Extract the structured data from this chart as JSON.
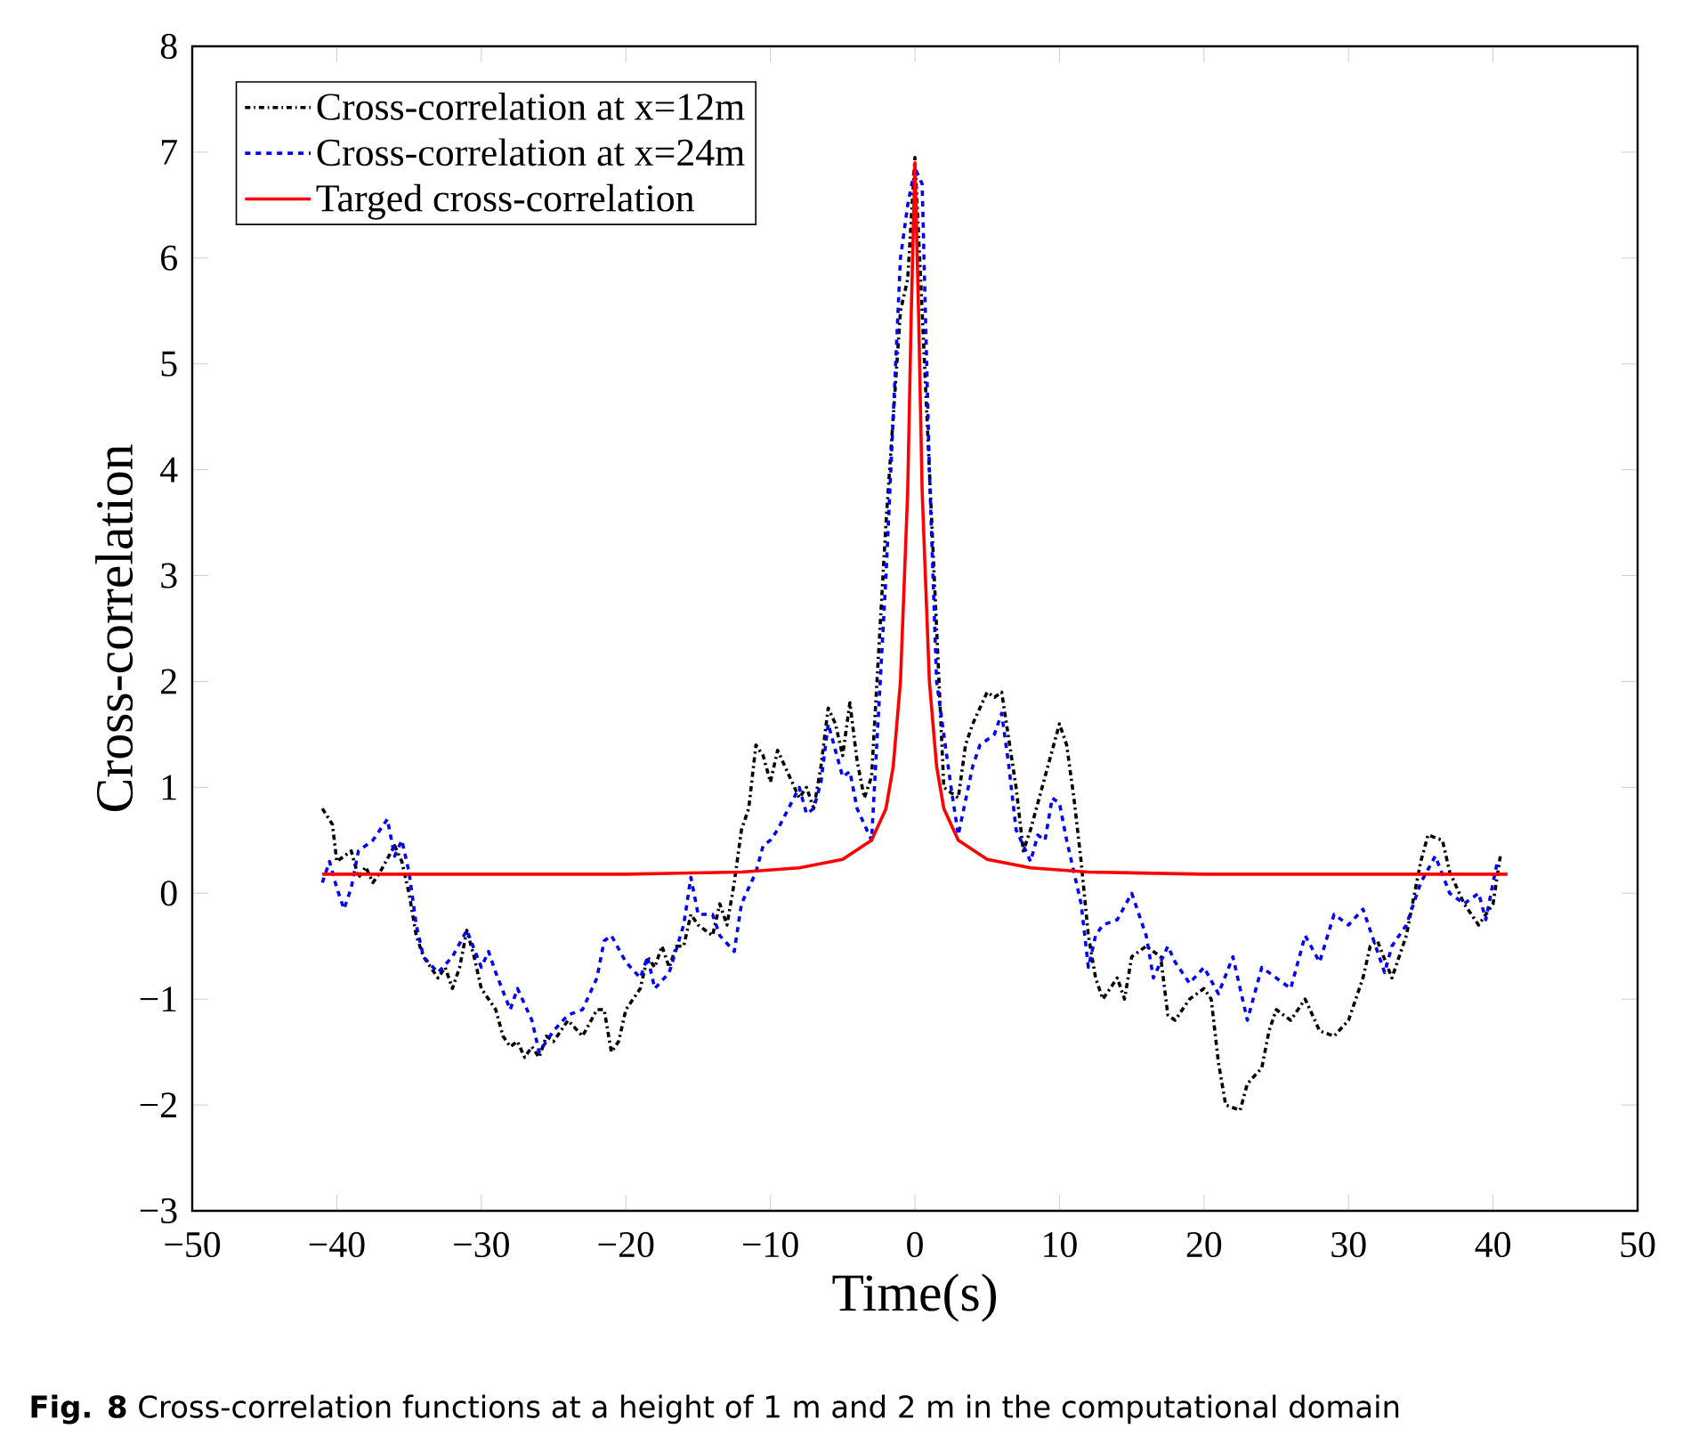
{
  "chart_data": {
    "type": "line",
    "xlabel": "Time(s)",
    "ylabel": "Cross-correlation",
    "xlim": [
      -50,
      50
    ],
    "xticks": [
      {
        "value": -50,
        "label": "−50"
      },
      {
        "value": -40,
        "label": "−40"
      },
      {
        "value": -30,
        "label": "−30"
      },
      {
        "value": -20,
        "label": "−20"
      },
      {
        "value": -10,
        "label": "−10"
      },
      0,
      10,
      20,
      30,
      40,
      50
    ],
    "ylim": [
      -3,
      8
    ],
    "yticks": [
      {
        "value": -3,
        "label": "−3"
      },
      {
        "value": -2,
        "label": "−2"
      },
      {
        "value": -1,
        "label": "−1"
      },
      0,
      1,
      2,
      3,
      4,
      5,
      6,
      7,
      8
    ],
    "grid": false,
    "legend": "top left",
    "annotations": [
      "**Fig. 8**  Cross-correlation functions at a height of 1 m and 2 m in the computational domain"
    ],
    "series": [
      {
        "name": "Cross-correlation at x=12m",
        "color": "#000000",
        "line_style": "dashdot",
        "x": [
          -41,
          -40.3,
          -40,
          -39,
          -38.5,
          -38,
          -37.5,
          -37,
          -36,
          -35.5,
          -35,
          -34.5,
          -34,
          -33,
          -32.5,
          -32,
          -31.5,
          -31,
          -30.5,
          -30,
          -29,
          -28.5,
          -28,
          -27.5,
          -27,
          -26.5,
          -26,
          -25.5,
          -25,
          -24,
          -23,
          -22,
          -21.5,
          -21,
          -20.5,
          -20,
          -19,
          -18.5,
          -18,
          -17.5,
          -17,
          -16.5,
          -16,
          -15.5,
          -15,
          -14,
          -13.5,
          -13,
          -12.5,
          -12,
          -11.5,
          -11,
          -10.5,
          -10,
          -9.5,
          -9,
          -8,
          -7.5,
          -7,
          -6.5,
          -6,
          -5.5,
          -5,
          -4.5,
          -4,
          -3.5,
          -3,
          -2,
          -1.5,
          -1,
          -0.5,
          0,
          0.5,
          1,
          1.5,
          2,
          3,
          3.5,
          4,
          5,
          5.5,
          6,
          7,
          7.5,
          8,
          9,
          10,
          10.5,
          11,
          11.5,
          12,
          12.5,
          13,
          14,
          14.5,
          15,
          16,
          17,
          17.5,
          18,
          19,
          20,
          20.5,
          21,
          21.5,
          22.5,
          23,
          24,
          24.5,
          25,
          26,
          27,
          28,
          29,
          30,
          31,
          31.5,
          32,
          33,
          34,
          35,
          35.5,
          36.5,
          37,
          38,
          38.5,
          39,
          40,
          40.5
        ],
        "values": [
          0.8,
          0.65,
          0.3,
          0.4,
          0.15,
          0.25,
          0.1,
          0.2,
          0.45,
          0.3,
          0.0,
          -0.4,
          -0.6,
          -0.8,
          -0.7,
          -0.9,
          -0.7,
          -0.35,
          -0.6,
          -0.9,
          -1.1,
          -1.35,
          -1.45,
          -1.4,
          -1.55,
          -1.45,
          -1.55,
          -1.35,
          -1.4,
          -1.2,
          -1.35,
          -1.1,
          -1.1,
          -1.5,
          -1.4,
          -1.1,
          -0.9,
          -0.6,
          -0.7,
          -0.5,
          -0.7,
          -0.5,
          -0.5,
          -0.2,
          -0.3,
          -0.4,
          -0.1,
          -0.3,
          0.1,
          0.6,
          0.8,
          1.4,
          1.3,
          1.05,
          1.35,
          1.2,
          0.9,
          1.0,
          0.8,
          1.2,
          1.75,
          1.6,
          1.3,
          1.8,
          1.25,
          0.9,
          1.1,
          3.5,
          4.5,
          5.5,
          5.8,
          6.95,
          5.5,
          4.0,
          2.5,
          1.0,
          0.9,
          1.4,
          1.6,
          1.9,
          1.85,
          1.9,
          1.0,
          0.4,
          0.6,
          1.1,
          1.6,
          1.4,
          0.9,
          0.3,
          -0.4,
          -0.8,
          -1.0,
          -0.8,
          -1.0,
          -0.6,
          -0.5,
          -0.6,
          -1.15,
          -1.2,
          -1.0,
          -0.9,
          -1.0,
          -1.6,
          -2.0,
          -2.05,
          -1.8,
          -1.65,
          -1.3,
          -1.1,
          -1.2,
          -1.0,
          -1.3,
          -1.35,
          -1.2,
          -0.8,
          -0.5,
          -0.45,
          -0.8,
          -0.4,
          0.3,
          0.55,
          0.5,
          0.2,
          -0.1,
          -0.2,
          -0.3,
          -0.1,
          0.35
        ]
      },
      {
        "name": "Cross-correlation at x=24m",
        "color": "#0000ff",
        "line_style": "dashed",
        "x": [
          -41,
          -40.5,
          -40,
          -39.5,
          -39,
          -38.5,
          -37.5,
          -36.5,
          -36,
          -35.5,
          -35,
          -34.5,
          -34,
          -33,
          -32,
          -31,
          -30,
          -29.5,
          -29,
          -28,
          -27.5,
          -27,
          -26.5,
          -26,
          -25,
          -24,
          -23,
          -22,
          -21.5,
          -21,
          -20,
          -19,
          -18.5,
          -18,
          -17,
          -16,
          -15.5,
          -15,
          -14,
          -13.5,
          -12.5,
          -12,
          -11,
          -10.5,
          -10,
          -9.5,
          -8,
          -7.5,
          -7,
          -6.5,
          -6,
          -5,
          -4.5,
          -4,
          -3,
          -2,
          -1.5,
          -1,
          -0.5,
          0,
          0.5,
          1,
          1.5,
          2.5,
          3,
          4,
          4.5,
          5.5,
          6,
          6.5,
          7,
          8,
          8.5,
          9,
          9.5,
          10,
          10.5,
          11.5,
          12,
          12.5,
          13,
          14,
          15,
          16,
          16.5,
          17.5,
          18,
          19,
          20,
          21,
          22,
          23,
          24,
          25,
          26,
          27,
          28,
          29,
          30,
          31,
          32,
          32.5,
          33,
          34,
          35,
          36,
          37,
          38,
          39,
          39.5,
          40,
          40.3
        ],
        "values": [
          0.1,
          0.3,
          0.05,
          -0.15,
          0.05,
          0.4,
          0.5,
          0.7,
          0.35,
          0.5,
          0.2,
          -0.3,
          -0.6,
          -0.75,
          -0.6,
          -0.35,
          -0.7,
          -0.55,
          -0.75,
          -1.1,
          -0.9,
          -1.05,
          -1.2,
          -1.5,
          -1.3,
          -1.15,
          -1.1,
          -0.8,
          -0.45,
          -0.4,
          -0.65,
          -0.8,
          -0.6,
          -0.9,
          -0.75,
          -0.3,
          0.15,
          -0.2,
          -0.2,
          -0.4,
          -0.55,
          -0.1,
          0.2,
          0.45,
          0.5,
          0.6,
          1.0,
          0.75,
          0.8,
          1.05,
          1.6,
          1.1,
          1.15,
          0.8,
          0.5,
          3.0,
          4.5,
          6.0,
          6.5,
          6.85,
          6.7,
          4.0,
          2.0,
          1.0,
          0.55,
          1.2,
          1.4,
          1.5,
          1.7,
          1.2,
          0.6,
          0.3,
          0.55,
          0.5,
          0.9,
          0.85,
          0.5,
          -0.1,
          -0.7,
          -0.4,
          -0.3,
          -0.25,
          0.0,
          -0.4,
          -0.8,
          -0.5,
          -0.65,
          -0.85,
          -0.7,
          -0.95,
          -0.6,
          -1.2,
          -0.7,
          -0.8,
          -0.9,
          -0.4,
          -0.65,
          -0.2,
          -0.3,
          -0.15,
          -0.55,
          -0.75,
          -0.5,
          -0.3,
          0.1,
          0.35,
          0.0,
          -0.1,
          0.0,
          -0.25,
          0.1,
          0.3
        ]
      },
      {
        "name": "Targed cross-correlation",
        "color": "#ff0000",
        "line_style": "solid",
        "x": [
          -41,
          -20,
          -12,
          -8,
          -5,
          -3,
          -2,
          -1.5,
          -1,
          -0.5,
          -0.25,
          0,
          0.25,
          0.5,
          1,
          1.5,
          2,
          3,
          5,
          8,
          12,
          20,
          41
        ],
        "values": [
          0.18,
          0.18,
          0.2,
          0.24,
          0.32,
          0.5,
          0.8,
          1.2,
          2.0,
          3.8,
          5.5,
          6.9,
          5.5,
          3.8,
          2.0,
          1.2,
          0.8,
          0.5,
          0.32,
          0.24,
          0.2,
          0.18,
          0.18
        ]
      }
    ]
  }
}
